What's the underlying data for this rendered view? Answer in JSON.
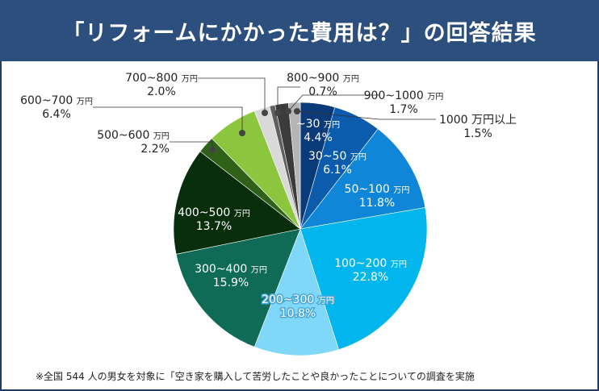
{
  "title": "「リフォームにかかった費用は？」の回答結果",
  "note": "※全国 544 人の男女を対象に「空き家を購入して苦労したことや良かったことについての調査を実施",
  "chart_data": {
    "type": "pie",
    "title": "「リフォームにかかった費用は？」の回答結果",
    "unit": "万円",
    "start": "12 o'clock, clockwise",
    "slices": [
      {
        "label": "~30",
        "value": 4.4,
        "pct": "4.4%",
        "color": "#0a3a78"
      },
      {
        "label": "30~50",
        "value": 6.1,
        "pct": "6.1%",
        "color": "#0b5cad"
      },
      {
        "label": "50~100",
        "value": 11.8,
        "pct": "11.8%",
        "color": "#0f86d8"
      },
      {
        "label": "100~200",
        "value": 22.8,
        "pct": "22.8%",
        "color": "#00b6ec"
      },
      {
        "label": "200~300",
        "value": 10.8,
        "pct": "10.8%",
        "color": "#7fd8f7"
      },
      {
        "label": "300~400",
        "value": 15.9,
        "pct": "15.9%",
        "color": "#0f6b55"
      },
      {
        "label": "400~500",
        "value": 13.7,
        "pct": "13.7%",
        "color": "#082e0c"
      },
      {
        "label": "500~600",
        "value": 2.2,
        "pct": "2.2%",
        "color": "#2f6119"
      },
      {
        "label": "600~700",
        "value": 6.4,
        "pct": "6.4%",
        "color": "#8cc63f"
      },
      {
        "label": "700~800",
        "value": 2.0,
        "pct": "2.0%",
        "color": "#d9d9d9"
      },
      {
        "label": "800~900",
        "value": 0.7,
        "pct": "0.7%",
        "color": "#5f5f5f"
      },
      {
        "label": "900~1000",
        "value": 1.7,
        "pct": "1.7%",
        "color": "#3b3b3b"
      },
      {
        "label": "1000 万円以上",
        "value": 1.5,
        "pct": "1.5%",
        "color": "#b5b5b5"
      }
    ]
  }
}
